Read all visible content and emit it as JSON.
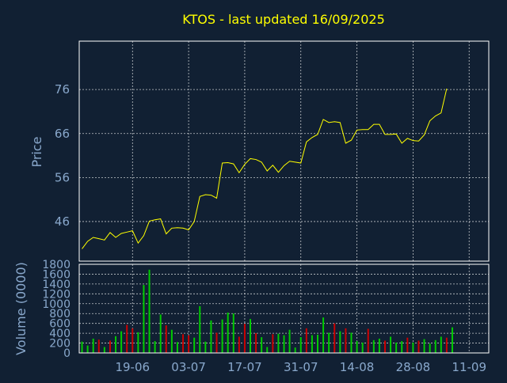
{
  "colors": {
    "background": "#112033",
    "axis": "#ffffff",
    "grid": "#ffffff",
    "title": "#ffff00",
    "axis_text": "#89a8cc",
    "price_line": "#ffff00",
    "volume_up": "#00cc00",
    "volume_down": "#cc0000"
  },
  "chart_data": [
    {
      "type": "line",
      "title": "KTOS - last updated 16/09/2025",
      "xlabel": "",
      "ylabel": "Price",
      "ylim": [
        37,
        87
      ],
      "yticks": [
        46,
        56,
        66,
        76
      ],
      "grid": true,
      "legend": "none",
      "x_tick_labels": [
        "19-06",
        "03-07",
        "17-07",
        "31-07",
        "14-08",
        "28-08",
        "11-09"
      ],
      "x_tick_index": [
        9,
        19,
        29,
        39,
        49,
        59,
        69
      ],
      "series": [
        {
          "values": [
            39.8,
            41.5,
            42.4,
            42.1,
            41.8,
            43.5,
            42.4,
            43.3,
            43.6,
            43.9,
            41.1,
            42.8,
            46.1,
            46.4,
            46.6,
            43.2,
            44.5,
            44.6,
            44.5,
            44.1,
            46.0,
            51.7,
            52.1,
            52.0,
            51.3,
            59.3,
            59.4,
            59.1,
            57.1,
            59.0,
            60.3,
            60.1,
            59.5,
            57.5,
            58.8,
            57.2,
            58.7,
            59.7,
            59.5,
            59.3,
            64.1,
            65.1,
            65.8,
            69.2,
            68.5,
            68.7,
            68.5,
            63.8,
            64.5,
            66.8,
            66.9,
            66.9,
            68.1,
            68.1,
            65.8,
            65.8,
            65.9,
            63.8,
            64.9,
            64.4,
            64.3,
            65.7,
            68.9,
            70.0,
            70.7,
            76.2
          ],
          "x_index": [
            0,
            1,
            2,
            3,
            4,
            5,
            6,
            7,
            8,
            9,
            10,
            11,
            12,
            13,
            14,
            15,
            16,
            17,
            18,
            19,
            20,
            21,
            22,
            23,
            24,
            25,
            26,
            27,
            28,
            29,
            30,
            31,
            32,
            33,
            34,
            35,
            36,
            37,
            38,
            39,
            40,
            41,
            42,
            43,
            44,
            45,
            46,
            47,
            48,
            49,
            50,
            51,
            52,
            53,
            54,
            55,
            56,
            57,
            58,
            59,
            60,
            61,
            62,
            63,
            64,
            65
          ]
        }
      ]
    },
    {
      "type": "bar",
      "title": "",
      "xlabel": "",
      "ylabel": "Volume (0000)",
      "ylim": [
        0,
        1800
      ],
      "yticks": [
        0,
        200,
        400,
        600,
        800,
        1000,
        1200,
        1400,
        1600,
        1800
      ],
      "grid": true,
      "legend": "none",
      "x_tick_labels": [
        "19-06",
        "03-07",
        "17-07",
        "31-07",
        "14-08",
        "28-08",
        "11-09"
      ],
      "x_tick_index": [
        9,
        19,
        29,
        39,
        49,
        59,
        69
      ],
      "series": [
        {
          "values": [
            230,
            150,
            290,
            270,
            120,
            250,
            340,
            440,
            570,
            500,
            420,
            1380,
            1690,
            240,
            780,
            560,
            470,
            220,
            380,
            360,
            310,
            950,
            230,
            660,
            410,
            680,
            820,
            800,
            330,
            590,
            690,
            400,
            320,
            120,
            380,
            390,
            360,
            470,
            110,
            320,
            500,
            360,
            370,
            720,
            410,
            600,
            440,
            500,
            410,
            240,
            210,
            490,
            260,
            290,
            250,
            330,
            210,
            240,
            310,
            210,
            250,
            280,
            190,
            260,
            330,
            310,
            520
          ],
          "direction": [
            "up",
            "up",
            "up",
            "down",
            "up",
            "down",
            "up",
            "up",
            "down",
            "down",
            "up",
            "up",
            "up",
            "up",
            "up",
            "down",
            "up",
            "up",
            "down",
            "down",
            "up",
            "up",
            "up",
            "up",
            "down",
            "up",
            "up",
            "up",
            "down",
            "down",
            "up",
            "down",
            "up",
            "up",
            "down",
            "up",
            "up",
            "up",
            "up",
            "up",
            "down",
            "up",
            "up",
            "up",
            "up",
            "down",
            "up",
            "down",
            "up",
            "up",
            "up",
            "down",
            "up",
            "up",
            "down",
            "up",
            "up",
            "up",
            "down",
            "up",
            "down",
            "up",
            "up",
            "up",
            "up",
            "down",
            "up"
          ]
        }
      ]
    }
  ]
}
